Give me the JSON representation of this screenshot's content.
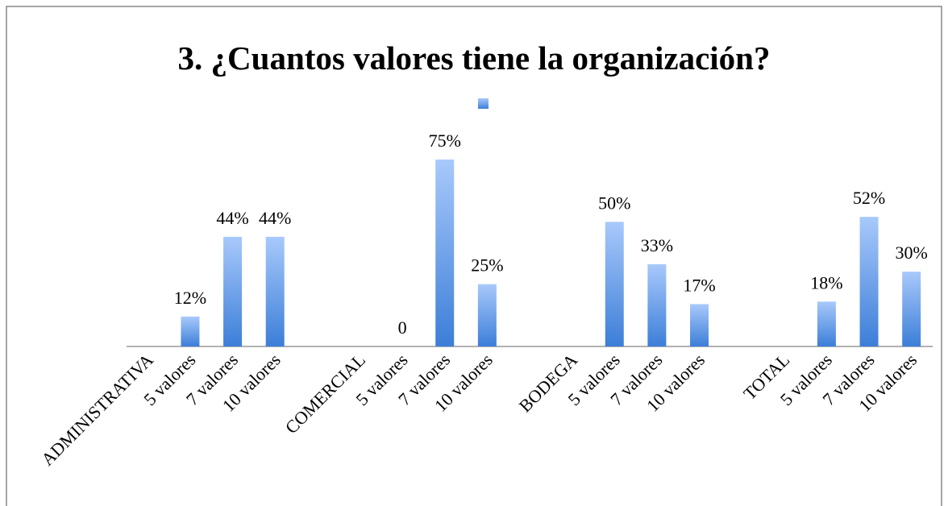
{
  "chart_data": {
    "type": "bar",
    "title": "3. ¿Cuantos valores tiene la organización?",
    "categories": [
      "ADMINISTRATIVA",
      "5 valores",
      "7 valores",
      "10 valores",
      null,
      "COMERCIAL",
      "5 valores",
      "7 valores",
      "10 valores",
      null,
      "BODEGA",
      "5 valores",
      "7 valores",
      "10 valores",
      null,
      "TOTAL",
      "5 valores",
      "7 valores",
      "10 valores"
    ],
    "values": [
      null,
      12,
      44,
      44,
      null,
      null,
      0,
      75,
      25,
      null,
      null,
      50,
      33,
      17,
      null,
      null,
      18,
      52,
      30
    ],
    "value_labels": [
      null,
      "12%",
      "44%",
      "44%",
      null,
      null,
      "0",
      "75%",
      "25%",
      null,
      null,
      "50%",
      "33%",
      "17%",
      null,
      null,
      "18%",
      "52%",
      "30%"
    ],
    "color": "#5b93e6"
  }
}
